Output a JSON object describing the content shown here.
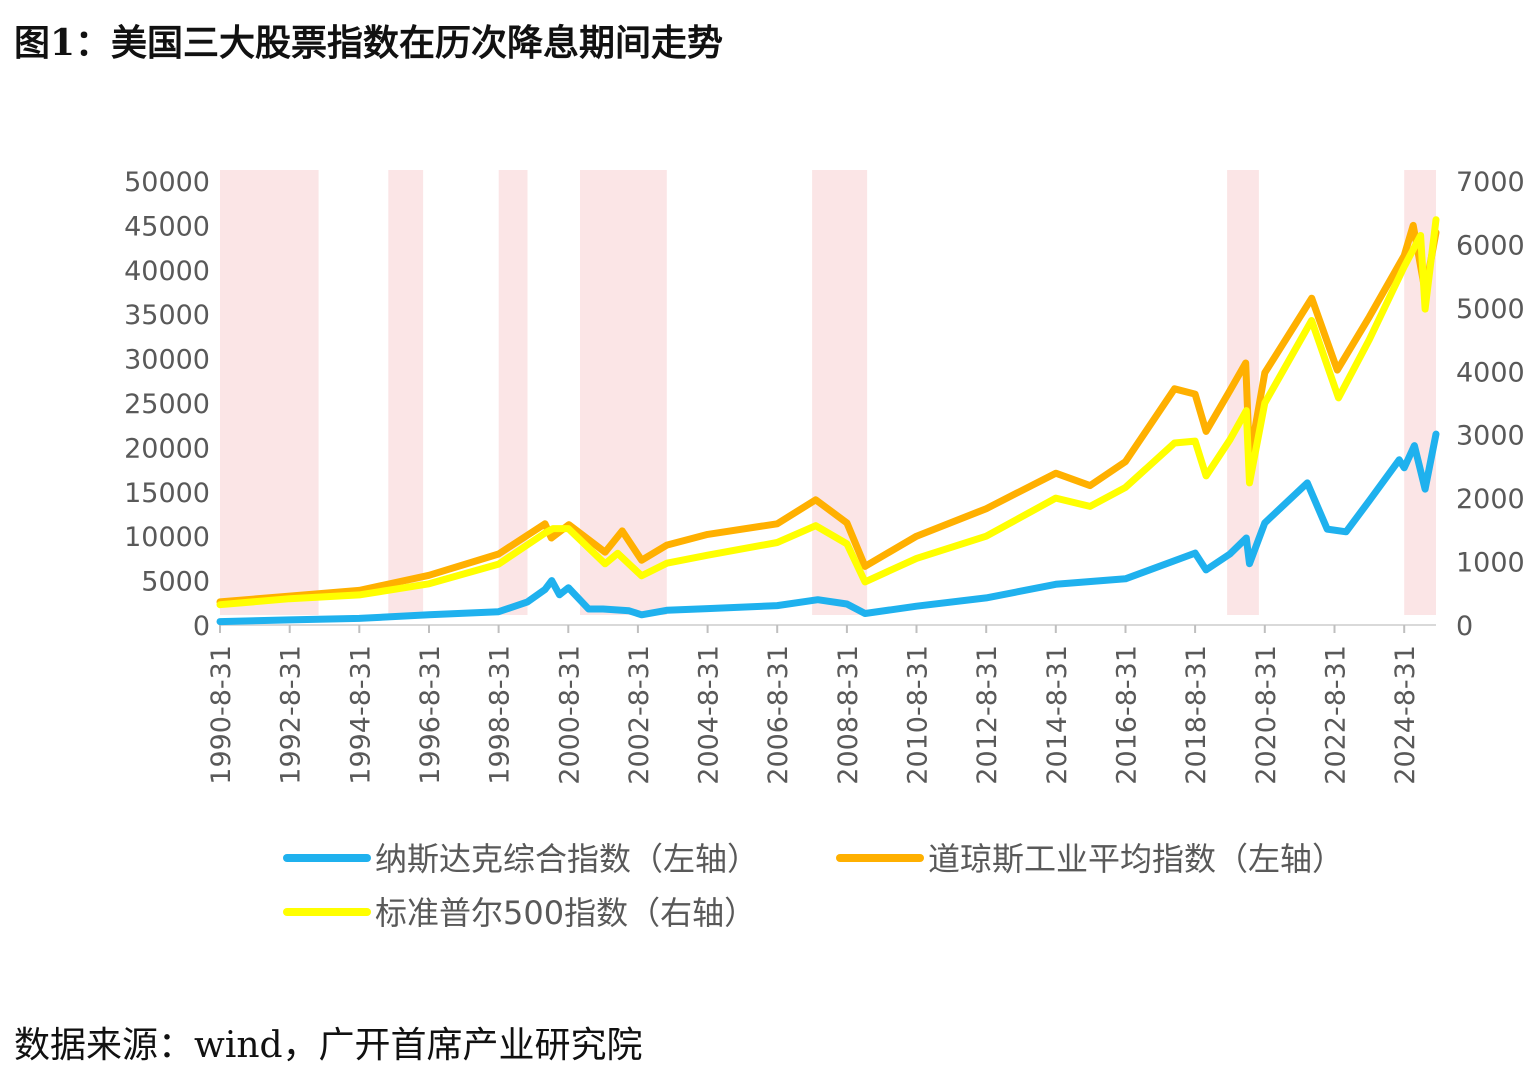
{
  "title": "图1：美国三大股票指数在历次降息期间走势",
  "source": "数据来源：wind，广开首席产业研究院",
  "chart_data": {
    "type": "line",
    "y_left": {
      "ticks": [
        "0",
        "5000",
        "10000",
        "15000",
        "20000",
        "25000",
        "30000",
        "35000",
        "40000",
        "45000",
        "50000"
      ],
      "range": [
        0,
        50000
      ]
    },
    "y_right": {
      "ticks": [
        "0",
        "1000",
        "2000",
        "3000",
        "4000",
        "5000",
        "6000",
        "7000"
      ],
      "range": [
        0,
        7000
      ]
    },
    "x_ticks": [
      "1990-8-31",
      "1992-8-31",
      "1994-8-31",
      "1996-8-31",
      "1998-8-31",
      "2000-8-31",
      "2002-8-31",
      "2004-8-31",
      "2006-8-31",
      "2008-8-31",
      "2010-8-31",
      "2012-8-31",
      "2014-8-31",
      "2016-8-31",
      "2018-8-31",
      "2020-8-31",
      "2022-8-31",
      "2024-8-31"
    ],
    "x_range": [
      "1990-08-31",
      "2025-07-31"
    ],
    "rate_cut_periods": [
      [
        "1990-07-01",
        "1993-06-30"
      ],
      [
        "1995-07-01",
        "1996-06-30"
      ],
      [
        "1998-09-01",
        "1999-06-30"
      ],
      [
        "2001-01-01",
        "2003-06-30"
      ],
      [
        "2007-09-01",
        "2009-03-31"
      ],
      [
        "2019-08-01",
        "2020-06-30"
      ],
      [
        "2024-09-01",
        "2025-07-31"
      ]
    ],
    "shade_color": "#fbe5e6",
    "series": [
      {
        "name": "纳斯达克综合指数（左轴）",
        "axis": "left",
        "color": "#1fb1ee",
        "points": [
          [
            "1990-08-31",
            380
          ],
          [
            "1992-08-31",
            570
          ],
          [
            "1994-08-31",
            740
          ],
          [
            "1996-08-31",
            1150
          ],
          [
            "1998-08-31",
            1500
          ],
          [
            "1999-06-30",
            2600
          ],
          [
            "1999-12-31",
            4000
          ],
          [
            "2000-03-10",
            5000
          ],
          [
            "2000-05-31",
            3400
          ],
          [
            "2000-09-01",
            4200
          ],
          [
            "2001-04-01",
            1800
          ],
          [
            "2001-08-31",
            1800
          ],
          [
            "2002-05-31",
            1600
          ],
          [
            "2002-10-09",
            1150
          ],
          [
            "2003-06-30",
            1650
          ],
          [
            "2004-08-31",
            1850
          ],
          [
            "2006-08-31",
            2180
          ],
          [
            "2007-10-31",
            2850
          ],
          [
            "2008-08-31",
            2370
          ],
          [
            "2009-03-09",
            1300
          ],
          [
            "2010-08-31",
            2120
          ],
          [
            "2012-08-31",
            3050
          ],
          [
            "2014-08-31",
            4580
          ],
          [
            "2016-08-31",
            5200
          ],
          [
            "2018-08-31",
            8100
          ],
          [
            "2018-12-24",
            6200
          ],
          [
            "2019-08-31",
            8000
          ],
          [
            "2020-02-19",
            9800
          ],
          [
            "2020-03-23",
            6900
          ],
          [
            "2020-08-31",
            11500
          ],
          [
            "2021-11-19",
            16000
          ],
          [
            "2022-06-16",
            10800
          ],
          [
            "2022-12-31",
            10500
          ],
          [
            "2023-08-31",
            14000
          ],
          [
            "2024-07-10",
            18600
          ],
          [
            "2024-08-31",
            17700
          ],
          [
            "2024-12-16",
            20200
          ],
          [
            "2025-04-08",
            15300
          ],
          [
            "2025-07-31",
            21500
          ]
        ]
      },
      {
        "name": "道琼斯工业平均指数（左轴）",
        "axis": "left",
        "color": "#ffb000",
        "points": [
          [
            "1990-08-31",
            2600
          ],
          [
            "1992-08-31",
            3250
          ],
          [
            "1994-08-31",
            3900
          ],
          [
            "1996-08-31",
            5600
          ],
          [
            "1998-08-31",
            8000
          ],
          [
            "1999-12-31",
            11400
          ],
          [
            "2000-03-07",
            9800
          ],
          [
            "2000-09-06",
            11300
          ],
          [
            "2001-09-21",
            8200
          ],
          [
            "2002-03-19",
            10600
          ],
          [
            "2002-10-09",
            7300
          ],
          [
            "2003-06-30",
            9000
          ],
          [
            "2004-08-31",
            10200
          ],
          [
            "2006-08-31",
            11400
          ],
          [
            "2007-10-09",
            14100
          ],
          [
            "2008-08-31",
            11500
          ],
          [
            "2009-03-09",
            6600
          ],
          [
            "2010-08-31",
            10000
          ],
          [
            "2012-08-31",
            13100
          ],
          [
            "2014-08-31",
            17100
          ],
          [
            "2015-08-24",
            15700
          ],
          [
            "2016-08-31",
            18400
          ],
          [
            "2018-01-26",
            26600
          ],
          [
            "2018-08-31",
            26000
          ],
          [
            "2018-12-24",
            21800
          ],
          [
            "2019-08-31",
            26400
          ],
          [
            "2020-02-12",
            29500
          ],
          [
            "2020-03-23",
            18600
          ],
          [
            "2020-08-31",
            28400
          ],
          [
            "2022-01-04",
            36800
          ],
          [
            "2022-09-30",
            28700
          ],
          [
            "2023-08-31",
            34700
          ],
          [
            "2024-08-31",
            41600
          ],
          [
            "2024-12-04",
            45000
          ],
          [
            "2025-04-08",
            37600
          ],
          [
            "2025-07-31",
            44200
          ]
        ]
      },
      {
        "name": "标准普尔500指数（右轴）",
        "axis": "right",
        "color": "#ffff00",
        "points": [
          [
            "1990-08-31",
            320
          ],
          [
            "1992-08-31",
            415
          ],
          [
            "1994-08-31",
            475
          ],
          [
            "1996-08-31",
            650
          ],
          [
            "1998-08-31",
            960
          ],
          [
            "1999-12-31",
            1450
          ],
          [
            "2000-03-24",
            1520
          ],
          [
            "2000-09-01",
            1520
          ],
          [
            "2001-09-21",
            965
          ],
          [
            "2002-01-31",
            1130
          ],
          [
            "2002-10-09",
            775
          ],
          [
            "2003-06-30",
            975
          ],
          [
            "2004-08-31",
            1100
          ],
          [
            "2006-08-31",
            1300
          ],
          [
            "2007-10-09",
            1565
          ],
          [
            "2008-08-31",
            1280
          ],
          [
            "2009-03-09",
            680
          ],
          [
            "2010-08-31",
            1050
          ],
          [
            "2012-08-31",
            1400
          ],
          [
            "2014-08-31",
            2000
          ],
          [
            "2015-08-24",
            1870
          ],
          [
            "2016-08-31",
            2170
          ],
          [
            "2018-01-26",
            2870
          ],
          [
            "2018-08-31",
            2900
          ],
          [
            "2018-12-24",
            2350
          ],
          [
            "2019-08-31",
            2920
          ],
          [
            "2020-02-19",
            3380
          ],
          [
            "2020-03-23",
            2240
          ],
          [
            "2020-08-31",
            3500
          ],
          [
            "2022-01-03",
            4800
          ],
          [
            "2022-10-12",
            3580
          ],
          [
            "2023-08-31",
            4500
          ],
          [
            "2024-08-31",
            5650
          ],
          [
            "2025-02-19",
            6140
          ],
          [
            "2025-04-08",
            4980
          ],
          [
            "2025-07-31",
            6390
          ]
        ]
      }
    ]
  }
}
